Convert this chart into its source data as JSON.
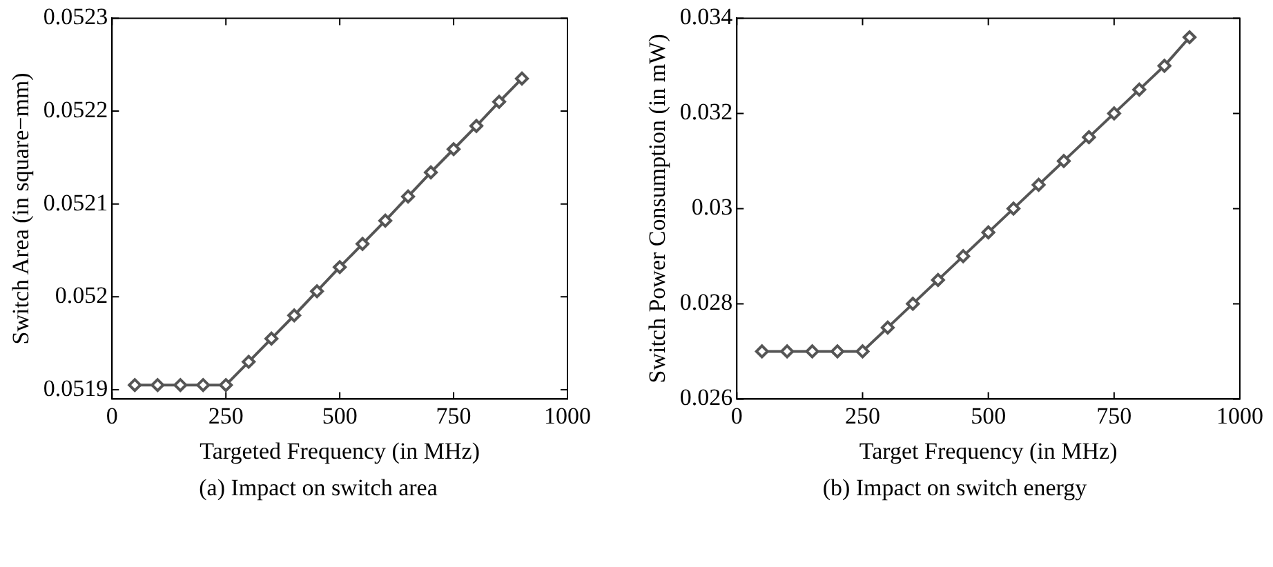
{
  "chart_data": [
    {
      "type": "line",
      "xlabel": "Targeted Frequency (in MHz)",
      "ylabel": "Switch Area (in square−mm)",
      "annotations": [
        "(a) Impact on switch area"
      ],
      "x": [
        50,
        100,
        150,
        200,
        250,
        300,
        350,
        400,
        450,
        500,
        550,
        600,
        650,
        700,
        750,
        800,
        850,
        900
      ],
      "series": [
        {
          "color": "#555555",
          "values": [
            0.051905,
            0.051905,
            0.051905,
            0.051905,
            0.051905,
            0.05193,
            0.051955,
            0.05198,
            0.052006,
            0.052032,
            0.052057,
            0.052082,
            0.052108,
            0.052134,
            0.052159,
            0.052184,
            0.05221,
            0.052235
          ]
        }
      ],
      "xlim": [
        0,
        1000
      ],
      "xticks": [
        0,
        250,
        500,
        750,
        1000
      ],
      "ylim": [
        0.05189,
        0.0523
      ],
      "yticks": [
        0.0519,
        0.052,
        0.0521,
        0.0522,
        0.0523
      ],
      "marker": "diamond",
      "line_style": "solid",
      "grid": false,
      "legend": false
    },
    {
      "type": "line",
      "xlabel": "Target Frequency (in MHz)",
      "ylabel": "Switch Power Consumption (in mW)",
      "annotations": [
        "(b) Impact on switch energy"
      ],
      "x": [
        50,
        100,
        150,
        200,
        250,
        300,
        350,
        400,
        450,
        500,
        550,
        600,
        650,
        700,
        750,
        800,
        850,
        900
      ],
      "series": [
        {
          "color": "#555555",
          "values": [
            0.027,
            0.027,
            0.027,
            0.027,
            0.027,
            0.0275,
            0.028,
            0.0285,
            0.029,
            0.0295,
            0.03,
            0.0305,
            0.031,
            0.0315,
            0.032,
            0.0325,
            0.033,
            0.0336
          ]
        }
      ],
      "xlim": [
        0,
        1000
      ],
      "xticks": [
        0,
        250,
        500,
        750,
        1000
      ],
      "ylim": [
        0.026,
        0.034
      ],
      "yticks": [
        0.026,
        0.028,
        0.03,
        0.032,
        0.034
      ],
      "marker": "diamond",
      "line_style": "solid",
      "grid": false,
      "legend": false
    }
  ]
}
